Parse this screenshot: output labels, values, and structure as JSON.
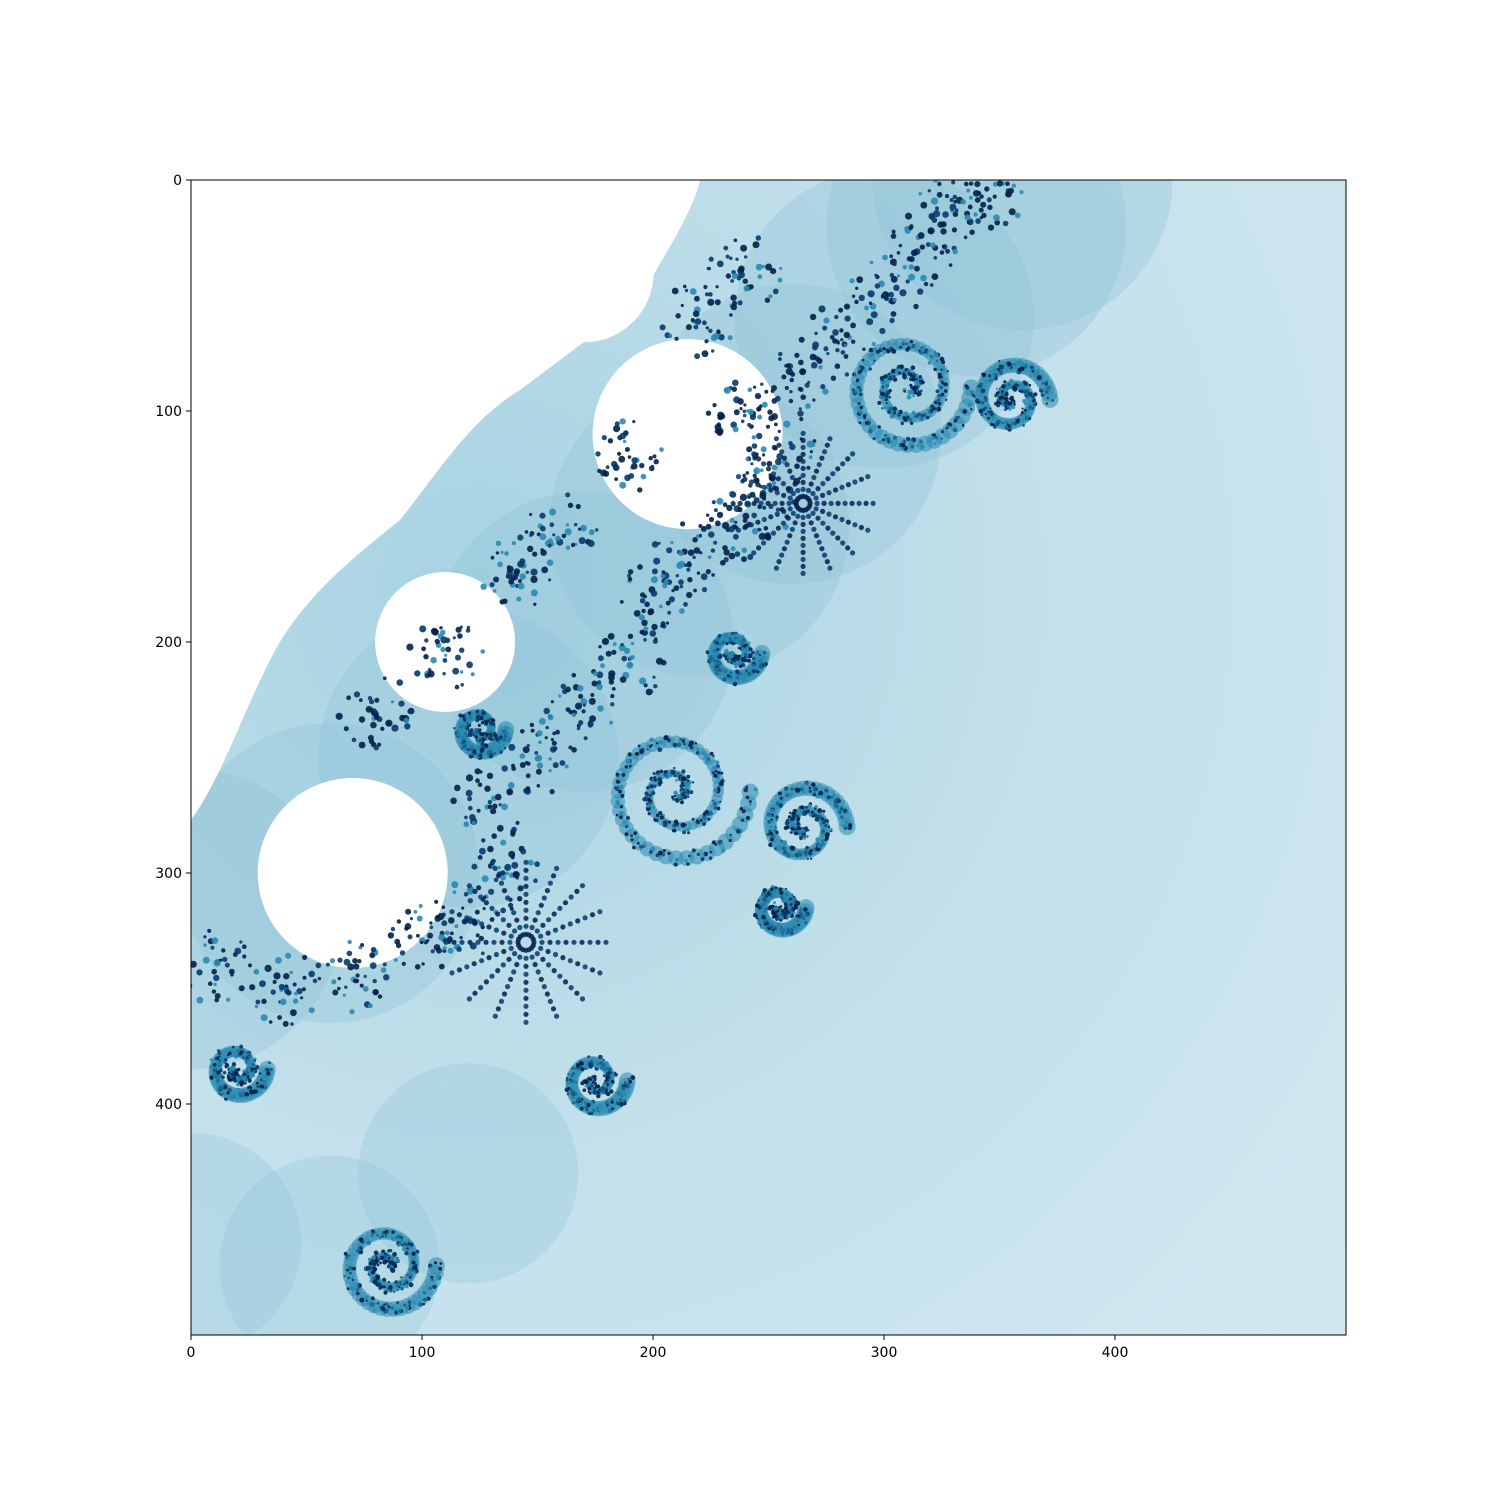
{
  "chart_data": {
    "type": "heatmap",
    "title": "",
    "xlabel": "",
    "ylabel": "",
    "xlim": [
      0,
      500
    ],
    "ylim": [
      500,
      0
    ],
    "grid": false,
    "colormap": "blue-white, light background with dark blue fractal filaments",
    "colors": {
      "interior": "#ffffff",
      "background_light": "#cde5ee",
      "mid": "#8fc4d8",
      "accent": "#2a8ab0",
      "dark": "#053a6b",
      "darkest": "#02204a"
    },
    "x_ticks": [
      {
        "value": 0,
        "label": "0"
      },
      {
        "value": 100,
        "label": "100"
      },
      {
        "value": 200,
        "label": "200"
      },
      {
        "value": 300,
        "label": "300"
      },
      {
        "value": 400,
        "label": "400"
      }
    ],
    "y_ticks": [
      {
        "value": 0,
        "label": "0"
      },
      {
        "value": 100,
        "label": "100"
      },
      {
        "value": 200,
        "label": "200"
      },
      {
        "value": 300,
        "label": "300"
      },
      {
        "value": 400,
        "label": "400"
      }
    ],
    "image_description_values": {
      "rows": 500,
      "cols": 500
    }
  }
}
